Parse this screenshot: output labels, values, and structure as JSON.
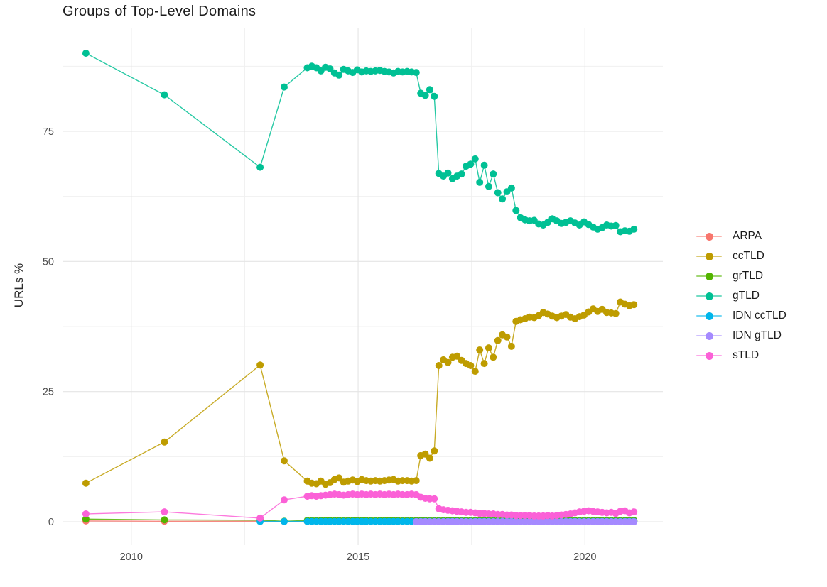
{
  "chart_data": {
    "type": "line",
    "title": "Groups of Top-Level Domains",
    "xlabel": "",
    "ylabel": "URLs %",
    "xlim": [
      2008.484,
      2021.718
    ],
    "ylim": [
      -4.5,
      94.77
    ],
    "x_ticks": [
      2010,
      2015,
      2020
    ],
    "y_ticks": [
      0,
      25,
      50,
      75
    ],
    "x_minor": [
      2012.5,
      2017.5
    ],
    "y_minor": [
      12.5,
      37.5,
      62.5,
      87.5
    ],
    "grid": true,
    "legend_position": "right",
    "colors": {
      "major_grid": "#e4e4e4",
      "minor_grid": "#f0f0f0",
      "axis_text": "#4d4d4d",
      "title_text": "#1c1c1c"
    },
    "series": [
      {
        "name": "ARPA",
        "color": "#F8766D",
        "sparse": [
          [
            2009.0,
            0.15
          ],
          [
            2010.73,
            0.1
          ],
          [
            2012.84,
            0.1
          ],
          [
            2013.37,
            0.05
          ]
        ],
        "dense": {
          "x0": 2013.88,
          "dx": 0.1,
          "n": 73,
          "const": 0.05
        }
      },
      {
        "name": "ccTLD",
        "color": "#BE9C00",
        "sparse": [
          [
            2009.0,
            7.4
          ],
          [
            2010.73,
            15.3
          ],
          [
            2012.84,
            30.1
          ],
          [
            2013.37,
            11.7
          ]
        ],
        "dense": {
          "x0": 2013.88,
          "dx": 0.1,
          "n": 73,
          "values": [
            7.8,
            7.4,
            7.3,
            7.8,
            7.2,
            7.5,
            8.1,
            8.4,
            7.6,
            7.8,
            8.0,
            7.7,
            8.1,
            7.9,
            7.8,
            7.9,
            7.8,
            7.9,
            8.0,
            8.1,
            7.8,
            7.9,
            7.9,
            7.8,
            7.9,
            12.7,
            13.0,
            12.2,
            13.6,
            30.0,
            31.1,
            30.6,
            31.6,
            31.8,
            31.0,
            30.4,
            30.0,
            28.9,
            33.0,
            30.4,
            33.4,
            31.6,
            34.8,
            35.9,
            35.5,
            33.7,
            38.5,
            38.8,
            39.0,
            39.3,
            39.2,
            39.6,
            40.2,
            39.9,
            39.5,
            39.2,
            39.5,
            39.8,
            39.3,
            39.0,
            39.4,
            39.7,
            40.3,
            40.9,
            40.4,
            40.8,
            40.2,
            40.1,
            40.0,
            42.2,
            41.8,
            41.5,
            41.7
          ]
        }
      },
      {
        "name": "grTLD",
        "color": "#53B400",
        "sparse": [
          [
            2009.0,
            0.5
          ],
          [
            2010.73,
            0.35
          ],
          [
            2012.84,
            0.3
          ],
          [
            2013.37,
            0.1
          ]
        ],
        "dense": {
          "x0": 2013.88,
          "dx": 0.1,
          "n": 73,
          "const": 0.25
        }
      },
      {
        "name": "gTLD",
        "color": "#00C094",
        "sparse": [
          [
            2009.0,
            90.0
          ],
          [
            2010.73,
            82.0
          ],
          [
            2012.84,
            68.1
          ],
          [
            2013.37,
            83.5
          ]
        ],
        "dense": {
          "x0": 2013.88,
          "dx": 0.1,
          "n": 73,
          "values": [
            87.2,
            87.5,
            87.2,
            86.6,
            87.3,
            87.0,
            86.2,
            85.8,
            86.9,
            86.6,
            86.3,
            86.8,
            86.4,
            86.6,
            86.5,
            86.6,
            86.7,
            86.5,
            86.4,
            86.2,
            86.5,
            86.4,
            86.5,
            86.4,
            86.3,
            82.3,
            81.9,
            83.0,
            81.7,
            66.9,
            66.4,
            67.0,
            65.9,
            66.4,
            66.8,
            68.3,
            68.7,
            69.7,
            65.2,
            68.5,
            64.4,
            66.8,
            63.2,
            62.0,
            63.4,
            64.1,
            59.8,
            58.4,
            58.0,
            57.8,
            57.9,
            57.2,
            57.0,
            57.5,
            58.2,
            57.8,
            57.3,
            57.5,
            57.8,
            57.4,
            57.0,
            57.6,
            57.1,
            56.6,
            56.2,
            56.5,
            57.0,
            56.8,
            56.9,
            55.7,
            55.9,
            55.8,
            56.2
          ]
        }
      },
      {
        "name": "IDN ccTLD",
        "color": "#00B6EB",
        "sparse": [
          [
            2012.84,
            0.05
          ],
          [
            2013.37,
            0.05
          ]
        ],
        "dense": {
          "x0": 2013.88,
          "dx": 0.1,
          "n": 73,
          "const": 0.05
        }
      },
      {
        "name": "IDN gTLD",
        "color": "#A58AFF",
        "sparse": [],
        "dense": {
          "x0": 2016.28,
          "dx": 0.1,
          "n": 49,
          "const": 0.0
        }
      },
      {
        "name": "sTLD",
        "color": "#FB61D7",
        "sparse": [
          [
            2009.0,
            1.5
          ],
          [
            2010.73,
            1.9
          ],
          [
            2012.84,
            0.7
          ],
          [
            2013.37,
            4.2
          ]
        ],
        "dense": {
          "x0": 2013.88,
          "dx": 0.1,
          "n": 73,
          "values": [
            4.9,
            5.0,
            4.9,
            5.0,
            5.1,
            5.2,
            5.3,
            5.2,
            5.1,
            5.2,
            5.3,
            5.2,
            5.3,
            5.2,
            5.3,
            5.2,
            5.3,
            5.2,
            5.3,
            5.2,
            5.3,
            5.2,
            5.2,
            5.3,
            5.2,
            4.7,
            4.5,
            4.4,
            4.4,
            2.5,
            2.3,
            2.2,
            2.1,
            2.0,
            1.9,
            1.8,
            1.8,
            1.7,
            1.6,
            1.6,
            1.5,
            1.5,
            1.4,
            1.4,
            1.3,
            1.3,
            1.2,
            1.2,
            1.2,
            1.2,
            1.1,
            1.1,
            1.1,
            1.2,
            1.1,
            1.2,
            1.3,
            1.4,
            1.5,
            1.7,
            1.9,
            2.0,
            2.1,
            2.0,
            1.9,
            1.8,
            1.7,
            1.8,
            1.6,
            2.0,
            2.1,
            1.7,
            1.9
          ]
        }
      }
    ]
  }
}
